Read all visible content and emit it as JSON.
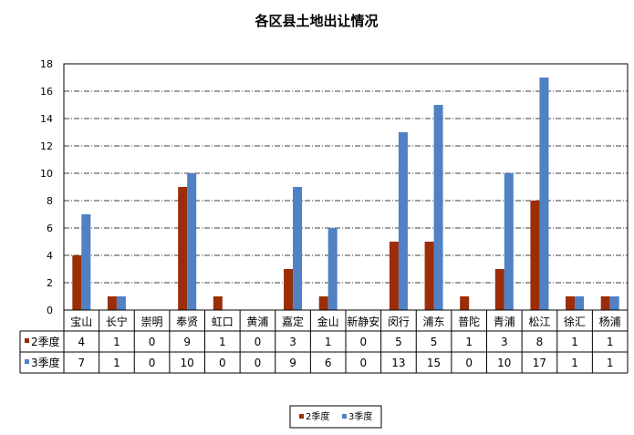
{
  "chart_data": {
    "type": "bar",
    "title": "各区县土地出让情况",
    "categories": [
      "宝山",
      "长宁",
      "崇明",
      "奉贤",
      "虹口",
      "黄浦",
      "嘉定",
      "金山",
      "新静安",
      "闵行",
      "浦东",
      "普陀",
      "青浦",
      "松江",
      "徐汇",
      "杨浦"
    ],
    "series": [
      {
        "name": "2季度",
        "color": "#9b2d08",
        "values": [
          4,
          1,
          0,
          9,
          1,
          0,
          3,
          1,
          0,
          5,
          5,
          1,
          3,
          8,
          1,
          1
        ]
      },
      {
        "name": "3季度",
        "color": "#4f81c4",
        "values": [
          7,
          1,
          0,
          10,
          0,
          0,
          9,
          6,
          0,
          13,
          15,
          0,
          10,
          17,
          1,
          1
        ]
      }
    ],
    "ylim": [
      0,
      18
    ],
    "yticks": [
      0,
      2,
      4,
      6,
      8,
      10,
      12,
      14,
      16,
      18
    ],
    "grid": true,
    "legend": "bottom",
    "table_below_chart": true
  }
}
